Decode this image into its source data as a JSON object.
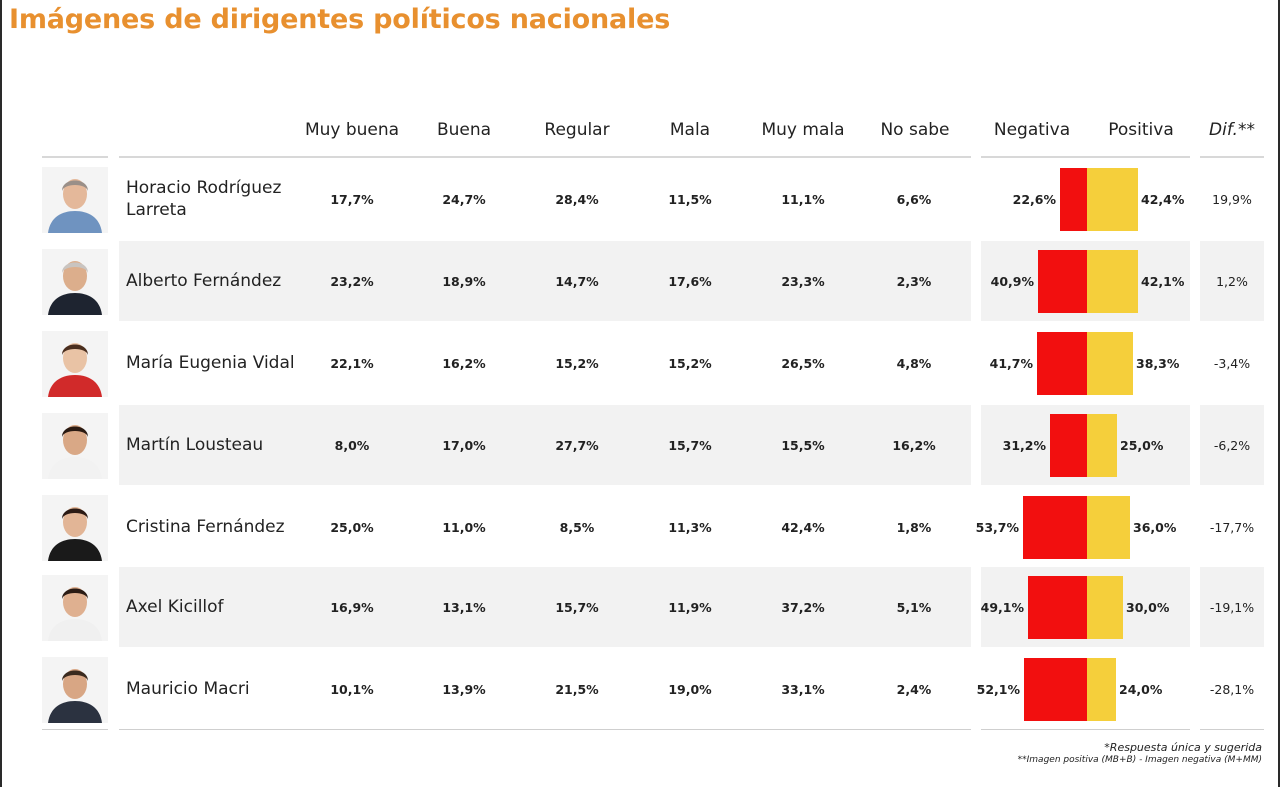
{
  "title": "Imágenes de dirigentes políticos nacionales",
  "headers": {
    "muy_buena": "Muy buena",
    "buena": "Buena",
    "regular": "Regular",
    "mala": "Mala",
    "muy_mala": "Muy mala",
    "no_sabe": "No sabe",
    "negativa": "Negativa",
    "positiva": "Positiva",
    "dif": "Dif.**"
  },
  "colors": {
    "title": "#e8902f",
    "negative": "#f20f0f",
    "positive": "#f5cf3b",
    "row_alt": "#f2f2f2"
  },
  "chart_data": {
    "type": "table",
    "columns": [
      "Muy buena",
      "Buena",
      "Regular",
      "Mala",
      "Muy mala",
      "No sabe",
      "Negativa",
      "Positiva",
      "Dif.**"
    ],
    "rows": [
      {
        "name": "Horacio Rodríguez Larreta",
        "photo": "portrait-photo",
        "cells": [
          "17,7%",
          "24,7%",
          "28,4%",
          "11,5%",
          "11,1%",
          "6,6%"
        ],
        "negativa": "22,6%",
        "positiva": "42,4%",
        "neg_value": 22.6,
        "pos_value": 42.4,
        "dif": "19,9%"
      },
      {
        "name": "Alberto Fernández",
        "photo": "portrait-photo",
        "cells": [
          "23,2%",
          "18,9%",
          "14,7%",
          "17,6%",
          "23,3%",
          "2,3%"
        ],
        "negativa": "40,9%",
        "positiva": "42,1%",
        "neg_value": 40.9,
        "pos_value": 42.1,
        "dif": "1,2%"
      },
      {
        "name": "María Eugenia Vidal",
        "photo": "portrait-photo",
        "cells": [
          "22,1%",
          "16,2%",
          "15,2%",
          "15,2%",
          "26,5%",
          "4,8%"
        ],
        "negativa": "41,7%",
        "positiva": "38,3%",
        "neg_value": 41.7,
        "pos_value": 38.3,
        "dif": "-3,4%"
      },
      {
        "name": "Martín Lousteau",
        "photo": "portrait-photo",
        "cells": [
          "8,0%",
          "17,0%",
          "27,7%",
          "15,7%",
          "15,5%",
          "16,2%"
        ],
        "negativa": "31,2%",
        "positiva": "25,0%",
        "neg_value": 31.2,
        "pos_value": 25.0,
        "dif": "-6,2%"
      },
      {
        "name": "Cristina Fernández",
        "photo": "portrait-photo",
        "cells": [
          "25,0%",
          "11,0%",
          "8,5%",
          "11,3%",
          "42,4%",
          "1,8%"
        ],
        "negativa": "53,7%",
        "positiva": "36,0%",
        "neg_value": 53.7,
        "pos_value": 36.0,
        "dif": "-17,7%"
      },
      {
        "name": "Axel Kicillof",
        "photo": "portrait-photo",
        "cells": [
          "16,9%",
          "13,1%",
          "15,7%",
          "11,9%",
          "37,2%",
          "5,1%"
        ],
        "negativa": "49,1%",
        "positiva": "30,0%",
        "neg_value": 49.1,
        "pos_value": 30.0,
        "dif": "-19,1%"
      },
      {
        "name": "Mauricio Macri",
        "photo": "portrait-photo",
        "cells": [
          "10,1%",
          "13,9%",
          "21,5%",
          "19,0%",
          "33,1%",
          "2,4%"
        ],
        "negativa": "52,1%",
        "positiva": "24,0%",
        "neg_value": 52.1,
        "pos_value": 24.0,
        "dif": "-28,1%"
      }
    ]
  },
  "footnotes": {
    "line1": "*Respuesta única y sugerida",
    "line2": "**Imagen positiva (MB+B) - Imagen negativa (M+MM)"
  }
}
